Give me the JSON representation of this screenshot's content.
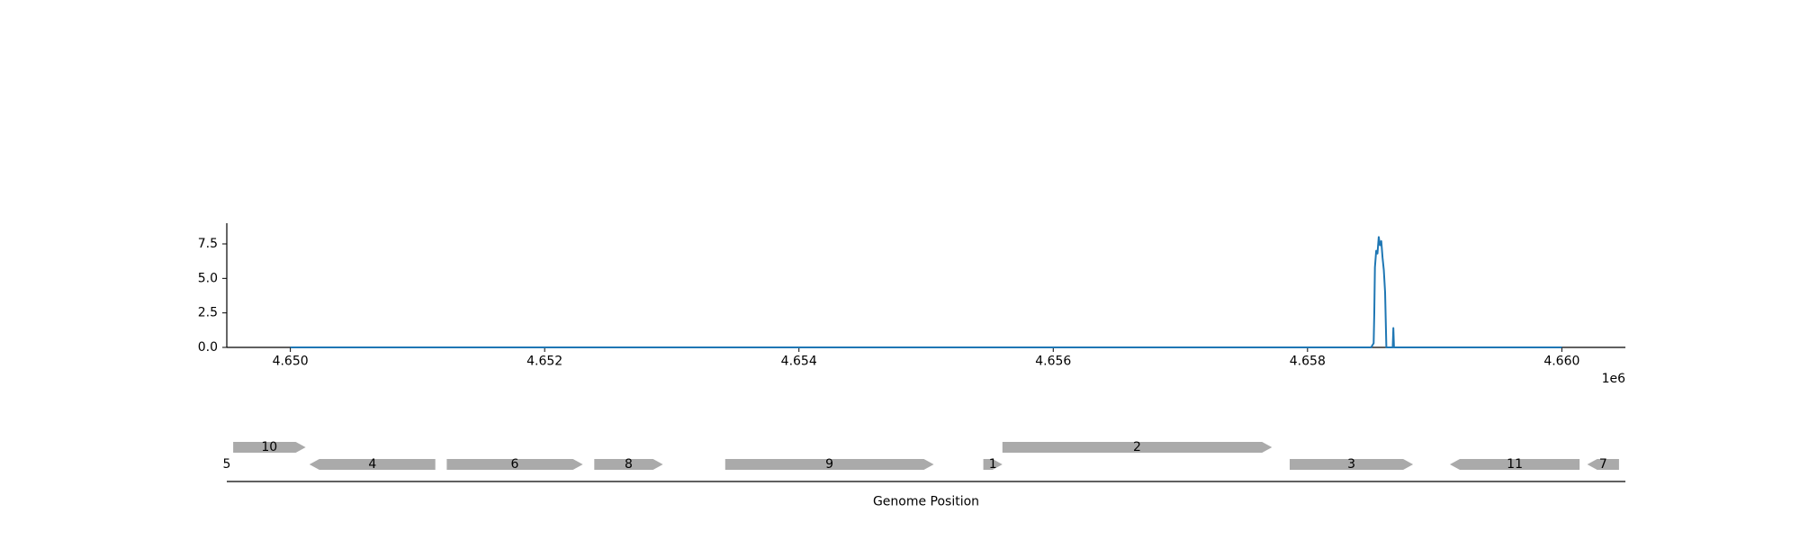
{
  "colors": {
    "signal": "#1f77b4",
    "gene": "#aaaaaa",
    "axis": "#000000",
    "background": "#ffffff"
  },
  "chart_data": [
    {
      "type": "line",
      "title": "",
      "xlabel": "",
      "ylabel": "",
      "x_offset_label": "1e6",
      "xlim": [
        4649500,
        4660500
      ],
      "ylim": [
        0,
        9
      ],
      "grid": false,
      "x_ticks": [
        4650000,
        4652000,
        4654000,
        4656000,
        4658000,
        4660000
      ],
      "x_tick_labels": [
        "4.650",
        "4.652",
        "4.654",
        "4.656",
        "4.658",
        "4.660"
      ],
      "y_ticks": [
        0,
        2.5,
        5,
        7.5
      ],
      "y_tick_labels": [
        "0.0",
        "2.5",
        "5.0",
        "7.5"
      ],
      "series": [
        {
          "x": [
            4650000,
            4658500,
            4658520,
            4658525,
            4658530,
            4658540,
            4658550,
            4658560,
            4658570,
            4658580,
            4658590,
            4658600,
            4658610,
            4658620,
            4658660,
            4658670,
            4658675,
            4658680,
            4658690,
            4660000
          ],
          "y": [
            0,
            0,
            0.3,
            2.5,
            5.8,
            7.0,
            6.8,
            8.0,
            7.4,
            7.7,
            6.5,
            5.6,
            4.0,
            0,
            0,
            0,
            1.4,
            0,
            0,
            0
          ]
        }
      ]
    },
    {
      "type": "gene-track",
      "xlabel": "Genome Position",
      "genes": [
        {
          "label": "10",
          "start": 4649550,
          "end": 4650120,
          "strand": "+",
          "row": 1
        },
        {
          "label": "5",
          "start": 4649500,
          "end": 4649500,
          "strand": "+",
          "row": 0
        },
        {
          "label": "4",
          "start": 4650150,
          "end": 4651140,
          "strand": "-",
          "row": 0
        },
        {
          "label": "6",
          "start": 4651230,
          "end": 4652300,
          "strand": "+",
          "row": 0
        },
        {
          "label": "8",
          "start": 4652390,
          "end": 4652930,
          "strand": "+",
          "row": 0
        },
        {
          "label": "9",
          "start": 4653420,
          "end": 4655060,
          "strand": "+",
          "row": 0
        },
        {
          "label": "1",
          "start": 4655450,
          "end": 4655600,
          "strand": "+",
          "row": 0
        },
        {
          "label": "2",
          "start": 4655600,
          "end": 4657720,
          "strand": "+",
          "row": 1
        },
        {
          "label": "3",
          "start": 4657860,
          "end": 4658830,
          "strand": "+",
          "row": 0
        },
        {
          "label": "11",
          "start": 4659120,
          "end": 4660140,
          "strand": "-",
          "row": 0
        },
        {
          "label": "7",
          "start": 4660200,
          "end": 4660450,
          "strand": "-",
          "row": 0
        }
      ]
    }
  ]
}
